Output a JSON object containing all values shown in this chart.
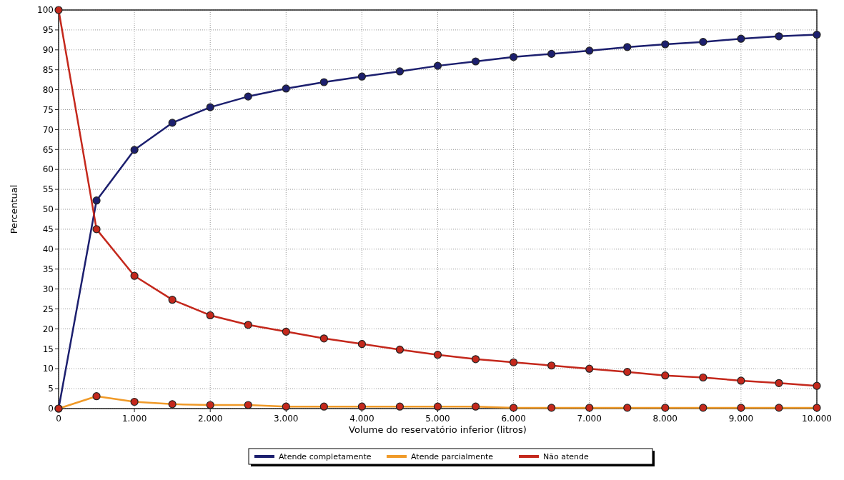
{
  "chart_data": {
    "type": "line",
    "xlabel": "Volume do reservatório inferior (litros)",
    "ylabel": "Percentual",
    "x": [
      0,
      500,
      1000,
      1500,
      2000,
      2500,
      3000,
      3500,
      4000,
      4500,
      5000,
      5500,
      6000,
      6500,
      7000,
      7500,
      8000,
      8500,
      9000,
      9500,
      10000
    ],
    "series": [
      {
        "name": "Atende completamente",
        "color": "#1c1f6e",
        "values": [
          0,
          52.2,
          64.9,
          71.7,
          75.6,
          78.3,
          80.3,
          81.9,
          83.3,
          84.6,
          86.0,
          87.1,
          88.2,
          89.0,
          89.8,
          90.7,
          91.4,
          92.0,
          92.8,
          93.4,
          93.8
        ]
      },
      {
        "name": "Atende parcialmente",
        "color": "#f09a28",
        "values": [
          0,
          3.1,
          1.7,
          1.1,
          0.9,
          0.9,
          0.5,
          0.5,
          0.5,
          0.5,
          0.5,
          0.5,
          0.2,
          0.2,
          0.2,
          0.2,
          0.2,
          0.2,
          0.2,
          0.2,
          0.2
        ]
      },
      {
        "name": "Não atende",
        "color": "#c4281c",
        "values": [
          100,
          45,
          33.3,
          27.3,
          23.4,
          21,
          19.3,
          17.6,
          16.2,
          14.8,
          13.5,
          12.4,
          11.6,
          10.8,
          10.0,
          9.2,
          8.3,
          7.8,
          7.0,
          6.4,
          5.7
        ]
      }
    ],
    "xlim": [
      0,
      10000
    ],
    "xticks": [
      0,
      {
        "value": 1000,
        "label": "1.000"
      },
      {
        "value": 2000,
        "label": "2.000"
      },
      {
        "value": 3000,
        "label": "3.000"
      },
      {
        "value": 4000,
        "label": "4.000"
      },
      {
        "value": 5000,
        "label": "5.000"
      },
      {
        "value": 6000,
        "label": "6.000"
      },
      {
        "value": 7000,
        "label": "7.000"
      },
      {
        "value": 8000,
        "label": "8.000"
      },
      {
        "value": 9000,
        "label": "9.000"
      },
      {
        "value": 10000,
        "label": "10.000"
      }
    ],
    "ylim": [
      0,
      100
    ],
    "yticks": [
      0,
      5,
      10,
      15,
      20,
      25,
      30,
      35,
      40,
      45,
      50,
      55,
      60,
      65,
      70,
      75,
      80,
      85,
      90,
      95,
      100
    ],
    "grid": true,
    "legend": "bottom",
    "marker": "circle",
    "line_style": "solid"
  }
}
